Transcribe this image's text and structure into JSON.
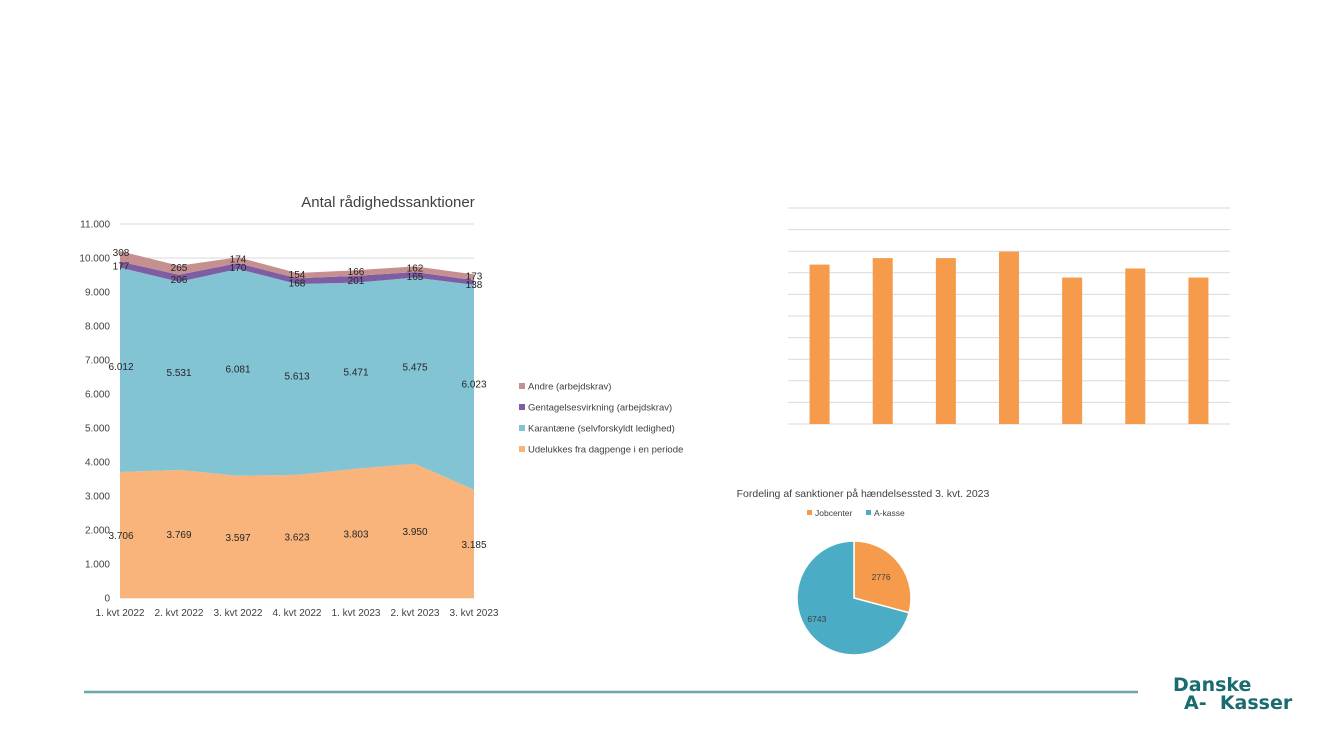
{
  "brand": {
    "logo_line1": "Danske",
    "logo_line2": "A-  Kasser",
    "logo_color": "#1a6b6f",
    "rule_color": "#6aa6ad"
  },
  "chart_data": [
    {
      "type": "area",
      "stacked": true,
      "title": "Antal rådighedssanktioner",
      "categories": [
        "1. kvt 2022",
        "2. kvt 2022",
        "3. kvt 2022",
        "4. kvt 2022",
        "1. kvt 2023",
        "2. kvt 2023",
        "3. kvt 2023"
      ],
      "series": [
        {
          "name": "Udelukkes fra dagpenge i en periode",
          "color": "#f8b47a",
          "values": [
            3706,
            3769,
            3597,
            3623,
            3803,
            3950,
            3185
          ]
        },
        {
          "name": "Karantæne (selvforskyldt ledighed)",
          "color": "#82c3d4",
          "values": [
            6012,
            5531,
            6081,
            5613,
            5471,
            5475,
            6023
          ]
        },
        {
          "name": "Gentagelsesvirkning (arbejdskrav)",
          "color": "#7e5da3",
          "values": [
            177,
            206,
            170,
            168,
            201,
            165,
            138
          ]
        },
        {
          "name": "Andre (arbejdskrav)",
          "color": "#c79090",
          "values": [
            308,
            265,
            174,
            154,
            166,
            162,
            173
          ]
        }
      ],
      "value_labels": {
        "Udelukkes fra dagpenge i en periode": [
          "3.706",
          "3.769",
          "3.597",
          "3.623",
          "3.803",
          "3.950",
          "3.185"
        ],
        "Karantæne (selvforskyldt ledighed)": [
          "6.012",
          "5.531",
          "6.081",
          "5.613",
          "5.471",
          "5.475",
          "6.023"
        ],
        "Gentagelsesvirkning (arbejdskrav)": [
          "177",
          "206",
          "170",
          "168",
          "201",
          "165",
          "138"
        ],
        "Andre (arbejdskrav)": [
          "308",
          "265",
          "174",
          "154",
          "166",
          "162",
          "173"
        ]
      },
      "ylim": [
        0,
        11000
      ],
      "y_ticks": [
        0,
        1000,
        2000,
        3000,
        4000,
        5000,
        6000,
        7000,
        8000,
        9000,
        10000,
        11000
      ],
      "y_tick_labels": [
        "0",
        "1.000",
        "2.000",
        "3.000",
        "4.000",
        "5.000",
        "6.000",
        "7.000",
        "8.000",
        "9.000",
        "10.000",
        "11.000"
      ],
      "legend_order": [
        "Andre (arbejdskrav)",
        "Gentagelsesvirkning (arbejdskrav)",
        "Karantæne (selvforskyldt ledighed)",
        "Udelukkes fra dagpenge i en periode"
      ],
      "legend_position": "right",
      "grid": true
    },
    {
      "type": "bar",
      "title": "",
      "color": "#f59b4b",
      "values": [
        7380,
        7680,
        7680,
        7980,
        6780,
        7200,
        6780
      ],
      "ylim": [
        0,
        10000
      ],
      "gridlines": 10,
      "axis_labels_visible": false
    },
    {
      "type": "pie",
      "title": "Fordeling af sanktioner på hændelsessted 3. kvt. 2023",
      "series": [
        {
          "name": "Jobcenter",
          "value": 2776,
          "label": "2776",
          "color": "#f59b4b"
        },
        {
          "name": "A-kasse",
          "value": 6743,
          "label": "6743",
          "color": "#4bacc6"
        }
      ],
      "legend_position": "top"
    }
  ]
}
